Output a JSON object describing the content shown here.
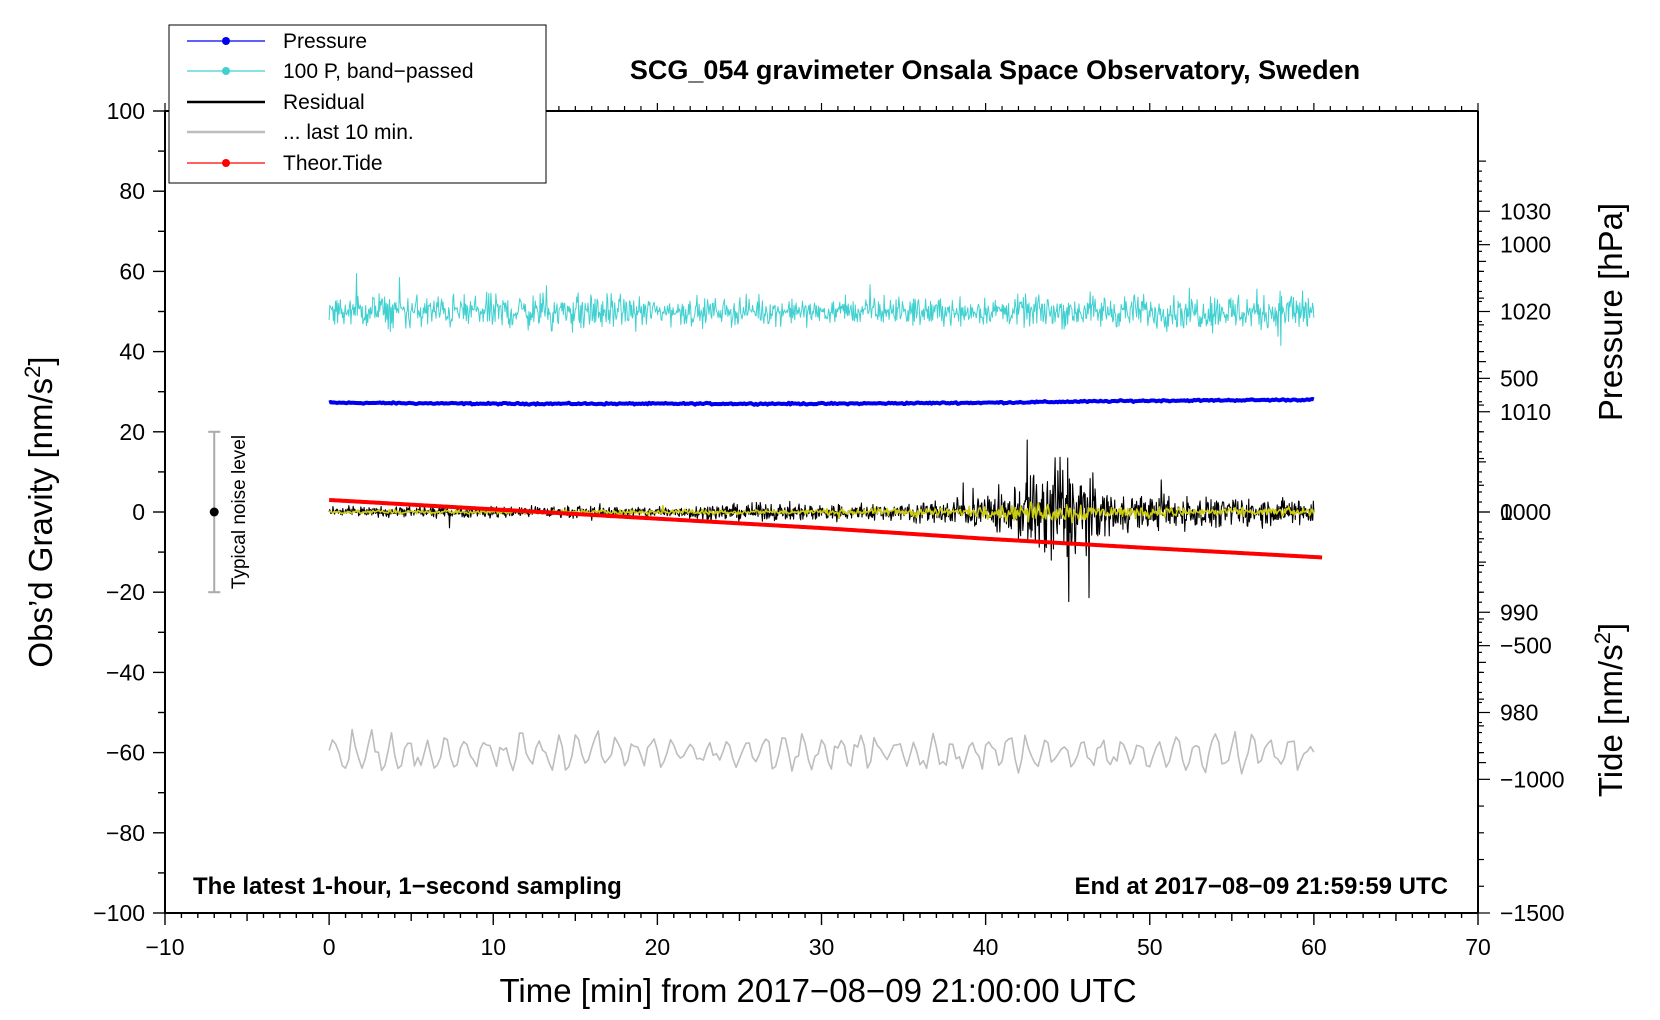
{
  "chart_data": {
    "type": "line",
    "title": "SCG_054 gravimeter Onsala Space Observatory, Sweden",
    "xlabel": "Time [min] from 2017−08−09 21:00:00 UTC",
    "ylabel": "Obs’d Gravity [nm/s",
    "ylabel_sup": "2",
    "ylabel_end": "]",
    "y2label": "Pressure [hPa]",
    "y3label": "Tide [nm/s",
    "y3label_sup": "2",
    "y3label_end": "]",
    "xlim": [
      -10,
      70
    ],
    "ylim": [
      -100,
      100
    ],
    "y2lim": [
      960,
      1040
    ],
    "y3lim": [
      -1500,
      1500
    ],
    "x_ticks": [
      -10,
      0,
      10,
      20,
      30,
      40,
      50,
      60,
      70
    ],
    "y_ticks": [
      -100,
      -80,
      -60,
      -40,
      -20,
      0,
      20,
      40,
      60,
      80,
      100
    ],
    "y2_ticks": [
      980,
      990,
      1000,
      1010,
      1020,
      1030
    ],
    "y3_ticks": [
      -1500,
      -1000,
      -500,
      0,
      500,
      1000
    ],
    "tick_minus": "−",
    "annotation_left": "The latest 1-hour, 1−second sampling",
    "annotation_right": "End at 2017−08−09 21:59:59 UTC",
    "noise_bar": {
      "label": "Typical noise level",
      "x": -7,
      "center": 0,
      "low": -20,
      "high": 20
    },
    "legend": [
      {
        "label": "Pressure",
        "color": "#0000ee",
        "marker": true
      },
      {
        "label": "100 P, band−passed",
        "color": "#40d0d0",
        "marker": true
      },
      {
        "label": "Residual",
        "color": "#000000",
        "marker": false
      },
      {
        "label": "... last 10 min.",
        "color": "#bdbdbd",
        "marker": false
      },
      {
        "label": "Theor.Tide",
        "color": "#ff0000",
        "marker": true
      }
    ],
    "series": [
      {
        "name": "Pressure",
        "axis": "pressure_hPa",
        "color": "#0000ee",
        "x": [
          0,
          10,
          20,
          30,
          40,
          50,
          60
        ],
        "values": [
          1010.9,
          1010.8,
          1010.8,
          1010.8,
          1010.9,
          1011.1,
          1011.2
        ]
      },
      {
        "name": "100 P, band-passed",
        "axis": "gravity_nm_s2",
        "color": "#40d0d0",
        "x": [
          0,
          5,
          10,
          15,
          20,
          25,
          30,
          35,
          40,
          45,
          50,
          55,
          60
        ],
        "center": 50,
        "amplitude": [
          6,
          6,
          6,
          7,
          5,
          5,
          4,
          5,
          5,
          6,
          6,
          7,
          8
        ]
      },
      {
        "name": "Residual",
        "axis": "gravity_nm_s2",
        "color": "#000000",
        "x": [
          0,
          5,
          10,
          15,
          20,
          25,
          30,
          35,
          40,
          42,
          44,
          45,
          46,
          47,
          48,
          50,
          55,
          60
        ],
        "center": 0,
        "amplitude": [
          1.5,
          2,
          2,
          2,
          2,
          3,
          3,
          3,
          6,
          10,
          22,
          22,
          15,
          9,
          7,
          6,
          5,
          5
        ]
      },
      {
        "name": "Residual (low-passed)",
        "axis": "gravity_nm_s2",
        "color": "#cccc10",
        "x": [
          0,
          10,
          20,
          30,
          40,
          44,
          45,
          48,
          55,
          60
        ],
        "center": 0,
        "amplitude": [
          0.6,
          0.8,
          0.9,
          1,
          2,
          4,
          4,
          2,
          1.5,
          1.5
        ]
      },
      {
        "name": "... last 10 min.",
        "axis": "gravity_nm_s2",
        "color": "#bdbdbd",
        "x": [
          0,
          10,
          20,
          30,
          40,
          50,
          60
        ],
        "center": -60,
        "amplitude": [
          5,
          6,
          5,
          5,
          5,
          5,
          5
        ]
      },
      {
        "name": "Theor.Tide",
        "axis": "tide_nm_s2",
        "color": "#ff0000",
        "x": [
          0,
          10,
          20,
          30,
          40,
          50,
          60.5
        ],
        "values": [
          45,
          10,
          -25,
          -60,
          -100,
          -135,
          -170
        ]
      }
    ]
  }
}
